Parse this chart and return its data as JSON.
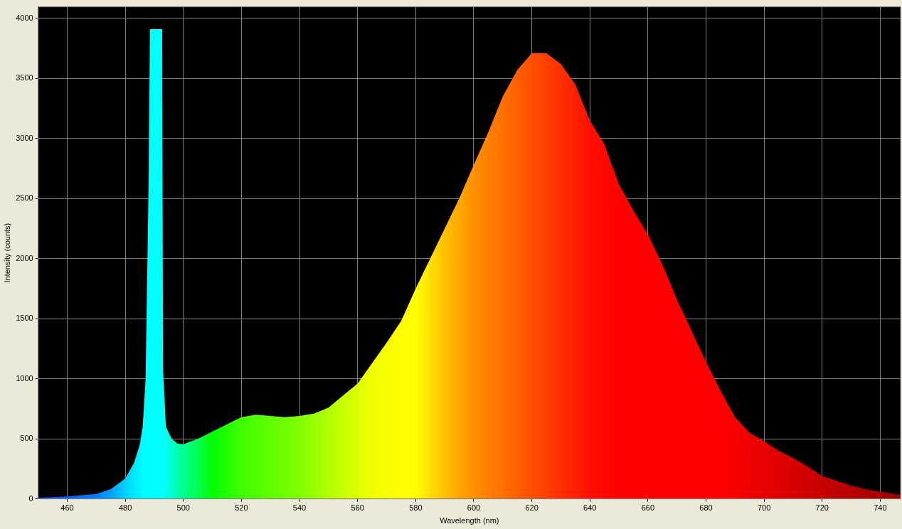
{
  "chart_data": {
    "type": "area",
    "xlabel": "Wavelength (nm)",
    "ylabel": "Intensity (counts)",
    "xlim": [
      450,
      747
    ],
    "xticks": [
      460,
      480,
      500,
      520,
      540,
      560,
      580,
      600,
      620,
      640,
      660,
      680,
      700,
      720,
      740
    ],
    "ylim": [
      0,
      4096
    ],
    "yticks": [
      0,
      500,
      1000,
      1500,
      2000,
      2500,
      3000,
      3500,
      4000
    ],
    "grid": true,
    "x": [
      450,
      460,
      470,
      475,
      480,
      483,
      485,
      486,
      487,
      488,
      488.5,
      492.7,
      493,
      494,
      496,
      498,
      500,
      505,
      510,
      515,
      520,
      525,
      530,
      535,
      540,
      545,
      550,
      555,
      560,
      565,
      570,
      575,
      580,
      585,
      590,
      595,
      600,
      605,
      610,
      615,
      620,
      625,
      630,
      635,
      640,
      645,
      650,
      655,
      660,
      665,
      670,
      675,
      680,
      685,
      690,
      695,
      700,
      705,
      710,
      715,
      720,
      725,
      730,
      735,
      740,
      745,
      747
    ],
    "values": [
      10,
      20,
      40,
      80,
      170,
      300,
      450,
      600,
      1000,
      2570,
      3910,
      3910,
      1080,
      600,
      500,
      460,
      455,
      500,
      560,
      620,
      680,
      700,
      690,
      680,
      690,
      710,
      760,
      860,
      960,
      1130,
      1300,
      1480,
      1750,
      2000,
      2250,
      2500,
      2780,
      3050,
      3350,
      3570,
      3710,
      3710,
      3620,
      3450,
      3150,
      2950,
      2620,
      2400,
      2200,
      1950,
      1660,
      1400,
      1140,
      900,
      680,
      550,
      480,
      400,
      340,
      270,
      190,
      150,
      110,
      80,
      60,
      40,
      35
    ],
    "colors": [
      "#0040ff",
      "#0060ff",
      "#0080ff",
      "#00a0ff",
      "#00d0ff",
      "#00e8ff",
      "#00f4ff",
      "#00ffff",
      "#00ffff",
      "#00ffff",
      "#00ffff",
      "#00ffff",
      "#00ffff",
      "#00ffee",
      "#00ffd0",
      "#00ffb0",
      "#00ff90",
      "#00ff50",
      "#00ff00",
      "#20ff00",
      "#40ff00",
      "#50ff00",
      "#60ff00",
      "#70ff00",
      "#80ff00",
      "#98ff00",
      "#b0ff00",
      "#c8ff00",
      "#ddff00",
      "#eeff00",
      "#f8ff00",
      "#ffff00",
      "#ffff00",
      "#ffe000",
      "#ffc000",
      "#ffa800",
      "#ff9000",
      "#ff8000",
      "#ff7000",
      "#ff6000",
      "#ff5000",
      "#ff4000",
      "#ff3000",
      "#ff2000",
      "#ff1000",
      "#ff0800",
      "#ff0000",
      "#ff0000",
      "#ff0000",
      "#ff0000",
      "#ff0000",
      "#ff0000",
      "#ff0000",
      "#ff0000",
      "#f80000",
      "#f00000",
      "#e80000",
      "#e00000",
      "#d80000",
      "#d00000",
      "#c80000",
      "#c00000",
      "#b80000",
      "#b00000",
      "#a80000",
      "#a00000",
      "#a00000"
    ]
  }
}
